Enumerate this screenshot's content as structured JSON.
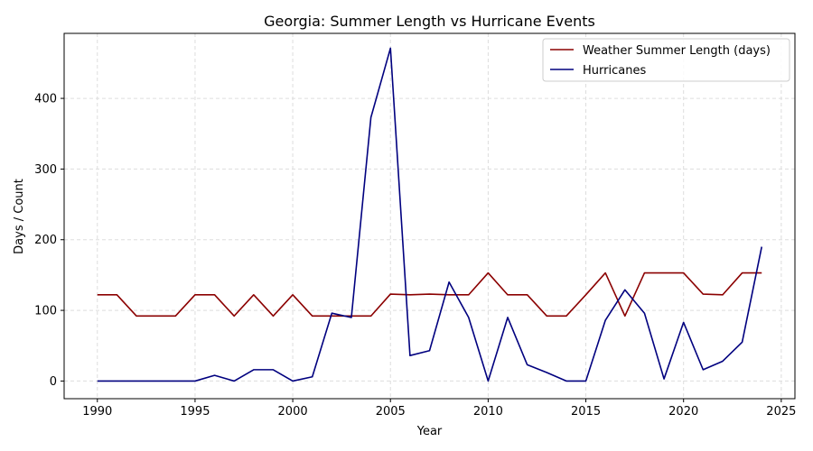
{
  "chart_data": {
    "type": "line",
    "title": "Georgia: Summer Length vs Hurricane Events",
    "xlabel": "Year",
    "ylabel": "Days / Count",
    "xlim": [
      1988.3,
      2025.7
    ],
    "ylim": [
      -25,
      492
    ],
    "x_ticks": [
      1990,
      1995,
      2000,
      2005,
      2010,
      2015,
      2020,
      2025
    ],
    "y_ticks": [
      0,
      100,
      200,
      300,
      400
    ],
    "grid": true,
    "legend_position": "top-right",
    "x": [
      1990,
      1991,
      1992,
      1993,
      1994,
      1995,
      1996,
      1997,
      1998,
      1999,
      2000,
      2001,
      2002,
      2003,
      2004,
      2005,
      2006,
      2007,
      2008,
      2009,
      2010,
      2011,
      2012,
      2013,
      2014,
      2015,
      2016,
      2017,
      2018,
      2019,
      2020,
      2021,
      2022,
      2023,
      2024
    ],
    "series": [
      {
        "name": "Weather Summer Length (days)",
        "color": "#8b0000",
        "values": [
          122,
          122,
          92,
          92,
          92,
          122,
          122,
          92,
          122,
          92,
          122,
          92,
          92,
          92,
          92,
          123,
          122,
          123,
          122,
          122,
          153,
          122,
          122,
          92,
          92,
          122,
          153,
          92,
          153,
          153,
          153,
          123,
          122,
          153,
          153
        ]
      },
      {
        "name": "Hurricanes",
        "color": "#00007f",
        "values": [
          0,
          0,
          0,
          0,
          0,
          0,
          8,
          0,
          16,
          16,
          0,
          6,
          96,
          90,
          373,
          471,
          36,
          43,
          140,
          90,
          0,
          90,
          23,
          12,
          0,
          0,
          86,
          129,
          96,
          3,
          83,
          16,
          28,
          55,
          190
        ]
      }
    ]
  }
}
